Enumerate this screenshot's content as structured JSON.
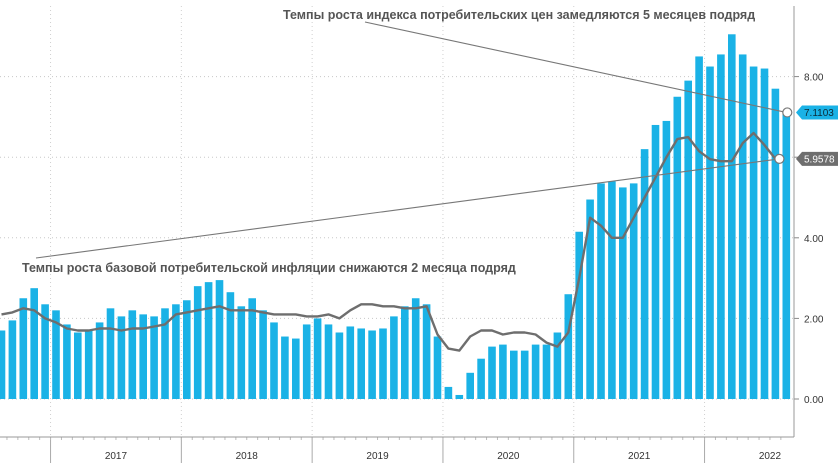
{
  "chart_data": {
    "type": "bar",
    "xlabel": "",
    "ylabel": "",
    "ylim": [
      -0.8,
      9.8
    ],
    "yticks": [
      0.0,
      2.0,
      4.0,
      6.0,
      8.0
    ],
    "ytick_labels": [
      "0.00",
      "2.00",
      "4.00",
      "6.00",
      "8.00"
    ],
    "years": [
      "2017",
      "2018",
      "2019",
      "2020",
      "2021",
      "2022"
    ],
    "grid": true,
    "bar_color": "#1ab2e6",
    "line_color": "#6e6e6e",
    "series": [
      {
        "type": "bar",
        "start": "2016-08",
        "values": [
          1.7,
          1.95,
          2.5,
          2.75,
          2.35,
          2.2,
          1.85,
          1.65,
          1.7,
          1.9,
          2.25,
          2.05,
          2.2,
          2.1,
          2.05,
          2.25,
          2.35,
          2.45,
          2.8,
          2.9,
          2.95,
          2.65,
          2.3,
          2.5,
          2.2,
          1.9,
          1.55,
          1.5,
          1.85,
          2.0,
          1.85,
          1.65,
          1.8,
          1.75,
          1.7,
          1.75,
          2.05,
          2.3,
          2.5,
          2.35,
          1.55,
          0.3,
          0.1,
          0.65,
          1.0,
          1.3,
          1.35,
          1.2,
          1.2,
          1.35,
          1.35,
          1.65,
          2.6,
          4.15,
          4.95,
          5.35,
          5.4,
          5.25,
          5.35,
          6.2,
          6.8,
          6.9,
          7.5,
          7.9,
          8.5,
          8.25,
          8.55,
          9.05,
          8.55,
          8.25,
          8.2,
          7.7,
          7.1103
        ],
        "last_value_label": "7.1103"
      },
      {
        "type": "line",
        "start": "2016-08",
        "values": [
          2.1,
          2.15,
          2.25,
          2.2,
          2.0,
          1.9,
          1.75,
          1.7,
          1.7,
          1.75,
          1.75,
          1.7,
          1.75,
          1.75,
          1.8,
          1.85,
          2.1,
          2.15,
          2.2,
          2.25,
          2.3,
          2.2,
          2.2,
          2.2,
          2.15,
          2.1,
          2.1,
          2.1,
          2.05,
          2.05,
          2.1,
          2.0,
          2.2,
          2.35,
          2.35,
          2.3,
          2.3,
          2.25,
          2.25,
          2.3,
          1.6,
          1.25,
          1.2,
          1.55,
          1.7,
          1.7,
          1.6,
          1.65,
          1.65,
          1.6,
          1.4,
          1.3,
          1.65,
          3.0,
          4.5,
          4.3,
          4.0,
          4.0,
          4.5,
          5.0,
          5.5,
          6.0,
          6.45,
          6.5,
          6.15,
          5.95,
          5.9,
          5.9,
          6.35,
          6.6,
          6.3,
          5.9578
        ],
        "last_value_label": "5.9578"
      }
    ],
    "annotations": [
      "Темпы роста индекса потребительских цен замедляются 5 месяцев подряд",
      "Темпы роста базовой потребительской инфляции снижаются 2 месяца подряд"
    ]
  }
}
